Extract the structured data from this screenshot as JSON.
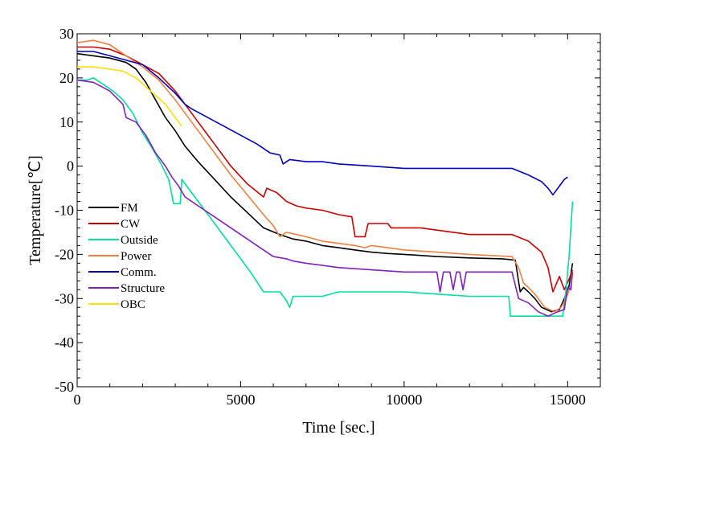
{
  "chart_data": {
    "type": "line",
    "title": "",
    "xlabel": "Time [sec.]",
    "ylabel": "Temperature[℃]",
    "xlim": [
      0,
      16000
    ],
    "ylim": [
      -50,
      30
    ],
    "xticks": [
      0,
      5000,
      10000,
      15000
    ],
    "yticks": [
      -50,
      -40,
      -30,
      -20,
      -10,
      0,
      10,
      20,
      30
    ],
    "grid": false,
    "legend_position": "left-middle",
    "series": [
      {
        "name": "FM",
        "color": "#000000",
        "points": [
          [
            0,
            25.5
          ],
          [
            500,
            25
          ],
          [
            1000,
            24.5
          ],
          [
            1500,
            23.5
          ],
          [
            1800,
            22
          ],
          [
            2100,
            19
          ],
          [
            2400,
            15
          ],
          [
            2700,
            11
          ],
          [
            3000,
            8
          ],
          [
            3300,
            4.5
          ],
          [
            3700,
            1
          ],
          [
            4200,
            -3
          ],
          [
            4700,
            -7
          ],
          [
            5200,
            -10.5
          ],
          [
            5700,
            -14
          ],
          [
            6200,
            -15.5
          ],
          [
            6600,
            -16.5
          ],
          [
            7000,
            -17
          ],
          [
            7500,
            -18
          ],
          [
            8000,
            -18.5
          ],
          [
            8500,
            -19
          ],
          [
            9000,
            -19.5
          ],
          [
            9500,
            -19.8
          ],
          [
            10000,
            -20
          ],
          [
            11000,
            -20.5
          ],
          [
            12000,
            -20.8
          ],
          [
            13000,
            -21
          ],
          [
            13400,
            -21.3
          ],
          [
            13550,
            -28.5
          ],
          [
            13650,
            -27.5
          ],
          [
            13800,
            -28.5
          ],
          [
            14000,
            -30
          ],
          [
            14200,
            -32
          ],
          [
            14500,
            -33
          ],
          [
            14750,
            -32.5
          ],
          [
            14900,
            -30
          ],
          [
            15050,
            -27
          ],
          [
            15150,
            -22
          ]
        ]
      },
      {
        "name": "CW",
        "color": "#cc0000",
        "points": [
          [
            0,
            27
          ],
          [
            500,
            27
          ],
          [
            1000,
            26.5
          ],
          [
            1500,
            25
          ],
          [
            2000,
            23
          ],
          [
            2500,
            21
          ],
          [
            3000,
            17
          ],
          [
            3300,
            14
          ],
          [
            3700,
            10
          ],
          [
            4200,
            5
          ],
          [
            4700,
            0
          ],
          [
            5200,
            -4
          ],
          [
            5700,
            -7
          ],
          [
            5800,
            -5
          ],
          [
            6100,
            -6
          ],
          [
            6400,
            -8
          ],
          [
            6700,
            -9
          ],
          [
            7000,
            -9.5
          ],
          [
            7500,
            -10
          ],
          [
            8000,
            -11
          ],
          [
            8400,
            -11.5
          ],
          [
            8500,
            -16
          ],
          [
            8800,
            -16
          ],
          [
            8900,
            -13
          ],
          [
            9500,
            -13
          ],
          [
            9600,
            -14
          ],
          [
            10500,
            -14
          ],
          [
            11000,
            -14.5
          ],
          [
            11500,
            -15
          ],
          [
            12000,
            -15.5
          ],
          [
            13300,
            -15.5
          ],
          [
            13800,
            -17
          ],
          [
            14200,
            -19.5
          ],
          [
            14400,
            -23
          ],
          [
            14550,
            -28.5
          ],
          [
            14750,
            -25
          ],
          [
            14900,
            -28
          ],
          [
            15050,
            -25.5
          ],
          [
            15150,
            -23.5
          ]
        ]
      },
      {
        "name": "Outside",
        "color": "#00e0a0",
        "points": [
          [
            0,
            19.5
          ],
          [
            300,
            19.5
          ],
          [
            500,
            20
          ],
          [
            800,
            18.5
          ],
          [
            1100,
            17
          ],
          [
            1400,
            15
          ],
          [
            1700,
            12
          ],
          [
            2000,
            7.5
          ],
          [
            2300,
            4
          ],
          [
            2600,
            0
          ],
          [
            2800,
            -3
          ],
          [
            2950,
            -8.5
          ],
          [
            3150,
            -8.5
          ],
          [
            3200,
            -3
          ],
          [
            3400,
            -5
          ],
          [
            3800,
            -9
          ],
          [
            4300,
            -14
          ],
          [
            4800,
            -19
          ],
          [
            5300,
            -24
          ],
          [
            5700,
            -28.5
          ],
          [
            6000,
            -28.5
          ],
          [
            6200,
            -28.5
          ],
          [
            6400,
            -30.5
          ],
          [
            6500,
            -32
          ],
          [
            6600,
            -29.5
          ],
          [
            7000,
            -29.5
          ],
          [
            7500,
            -29.5
          ],
          [
            8000,
            -28.5
          ],
          [
            9000,
            -28.5
          ],
          [
            10000,
            -28.5
          ],
          [
            11000,
            -29
          ],
          [
            12000,
            -29.5
          ],
          [
            13200,
            -29.5
          ],
          [
            13250,
            -34
          ],
          [
            14000,
            -34
          ],
          [
            14850,
            -34
          ],
          [
            14950,
            -28
          ],
          [
            15050,
            -20
          ],
          [
            15150,
            -8
          ]
        ]
      },
      {
        "name": "Power",
        "color": "#f08040",
        "points": [
          [
            0,
            28
          ],
          [
            500,
            28.5
          ],
          [
            1000,
            27.5
          ],
          [
            1500,
            25
          ],
          [
            2000,
            22.5
          ],
          [
            2500,
            19.5
          ],
          [
            3000,
            15
          ],
          [
            3300,
            12
          ],
          [
            3700,
            8
          ],
          [
            4200,
            3
          ],
          [
            4700,
            -2
          ],
          [
            5200,
            -6.5
          ],
          [
            5700,
            -11
          ],
          [
            6000,
            -13.5
          ],
          [
            6200,
            -16
          ],
          [
            6400,
            -15
          ],
          [
            6700,
            -15.5
          ],
          [
            7000,
            -16
          ],
          [
            7500,
            -17
          ],
          [
            8000,
            -17.5
          ],
          [
            8500,
            -18
          ],
          [
            8800,
            -18.5
          ],
          [
            9000,
            -18
          ],
          [
            9500,
            -18.5
          ],
          [
            10000,
            -19
          ],
          [
            11000,
            -19.5
          ],
          [
            12000,
            -20
          ],
          [
            13300,
            -20.5
          ],
          [
            13500,
            -23
          ],
          [
            13650,
            -26.5
          ],
          [
            13800,
            -27.5
          ],
          [
            14000,
            -29
          ],
          [
            14300,
            -32
          ],
          [
            14600,
            -33
          ],
          [
            14800,
            -32
          ],
          [
            14950,
            -30
          ],
          [
            15100,
            -27
          ]
        ]
      },
      {
        "name": "Comm.",
        "color": "#0000c0",
        "points": [
          [
            0,
            26
          ],
          [
            500,
            26
          ],
          [
            1000,
            25
          ],
          [
            1500,
            24
          ],
          [
            2000,
            23
          ],
          [
            2500,
            20
          ],
          [
            3000,
            16.5
          ],
          [
            3300,
            14
          ],
          [
            3500,
            13
          ],
          [
            4000,
            11
          ],
          [
            4500,
            9
          ],
          [
            5000,
            7
          ],
          [
            5500,
            5
          ],
          [
            5900,
            3
          ],
          [
            6200,
            2.5
          ],
          [
            6300,
            0.5
          ],
          [
            6500,
            1.5
          ],
          [
            7000,
            1
          ],
          [
            7500,
            1
          ],
          [
            8000,
            0.5
          ],
          [
            9000,
            0
          ],
          [
            10000,
            -0.5
          ],
          [
            11000,
            -0.5
          ],
          [
            12000,
            -0.5
          ],
          [
            13000,
            -0.5
          ],
          [
            13300,
            -0.5
          ],
          [
            13800,
            -2
          ],
          [
            14200,
            -3.5
          ],
          [
            14400,
            -5
          ],
          [
            14550,
            -6.5
          ],
          [
            14700,
            -5
          ],
          [
            14900,
            -3
          ],
          [
            15000,
            -2.5
          ]
        ]
      },
      {
        "name": "Structure",
        "color": "#8020c0",
        "points": [
          [
            0,
            19.5
          ],
          [
            500,
            19
          ],
          [
            1000,
            17
          ],
          [
            1400,
            14
          ],
          [
            1500,
            11
          ],
          [
            1800,
            10
          ],
          [
            2100,
            7
          ],
          [
            2400,
            3
          ],
          [
            2700,
            0
          ],
          [
            2900,
            -2.5
          ],
          [
            3100,
            -4.5
          ],
          [
            3300,
            -7
          ],
          [
            3700,
            -9
          ],
          [
            4200,
            -11.5
          ],
          [
            4700,
            -14
          ],
          [
            5200,
            -16.5
          ],
          [
            5700,
            -19
          ],
          [
            6000,
            -20.5
          ],
          [
            6400,
            -21
          ],
          [
            6600,
            -21.5
          ],
          [
            7000,
            -22
          ],
          [
            7500,
            -22.5
          ],
          [
            8000,
            -23
          ],
          [
            9000,
            -23.5
          ],
          [
            10000,
            -24
          ],
          [
            11000,
            -24
          ],
          [
            11100,
            -28.5
          ],
          [
            11200,
            -24
          ],
          [
            11400,
            -24
          ],
          [
            11500,
            -28
          ],
          [
            11600,
            -24
          ],
          [
            11700,
            -24
          ],
          [
            11800,
            -28
          ],
          [
            11900,
            -24
          ],
          [
            13300,
            -24
          ],
          [
            13500,
            -30
          ],
          [
            13800,
            -31
          ],
          [
            14100,
            -33
          ],
          [
            14400,
            -34
          ],
          [
            14700,
            -33
          ],
          [
            14900,
            -32.5
          ],
          [
            15000,
            -27.5
          ],
          [
            15100,
            -28
          ],
          [
            15150,
            -24
          ]
        ]
      },
      {
        "name": "OBC",
        "color": "#ffe000",
        "points": [
          [
            0,
            22.5
          ],
          [
            500,
            22.5
          ],
          [
            1000,
            22
          ],
          [
            1400,
            21.5
          ],
          [
            1800,
            20
          ],
          [
            2100,
            18
          ],
          [
            2400,
            16
          ],
          [
            2700,
            14
          ],
          [
            3000,
            11
          ],
          [
            3200,
            9
          ]
        ]
      }
    ]
  }
}
